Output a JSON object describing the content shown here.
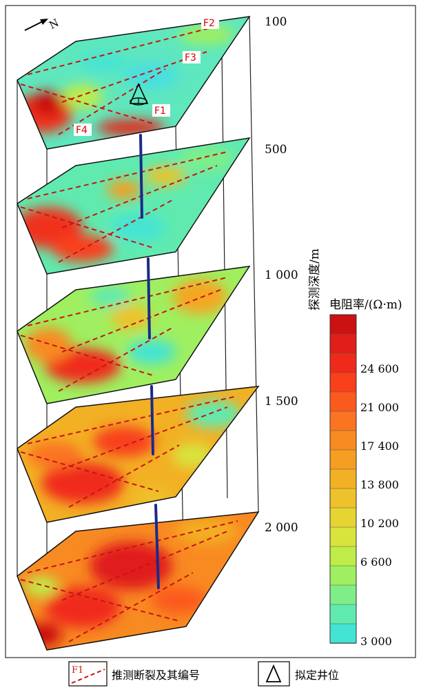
{
  "north_label": "N",
  "faults": [
    "F1",
    "F2",
    "F3",
    "F4"
  ],
  "depth_axis": {
    "title": "探测深度/m",
    "ticks": [
      "100",
      "500",
      "1 000",
      "1 500",
      "2 000"
    ]
  },
  "colorbar": {
    "title": "电阻率/(Ω·m)",
    "tick_labels": [
      "24 600",
      "21 000",
      "17 400",
      "13 800",
      "10 200",
      "6 600",
      "3 000"
    ],
    "colors": [
      "#cc1111",
      "#e01e1a",
      "#f02a1a",
      "#f8401c",
      "#fb5a1e",
      "#fb7420",
      "#f88a22",
      "#f59e22",
      "#f2b024",
      "#eec22a",
      "#e6d432",
      "#d8e43c",
      "#bfec48",
      "#9fef60",
      "#7fee88",
      "#60eab0",
      "#44e4d4"
    ]
  },
  "legend": {
    "fault_sample": "F1",
    "fault_text": "推测断裂及其编号",
    "well_text": "拟定井位"
  }
}
